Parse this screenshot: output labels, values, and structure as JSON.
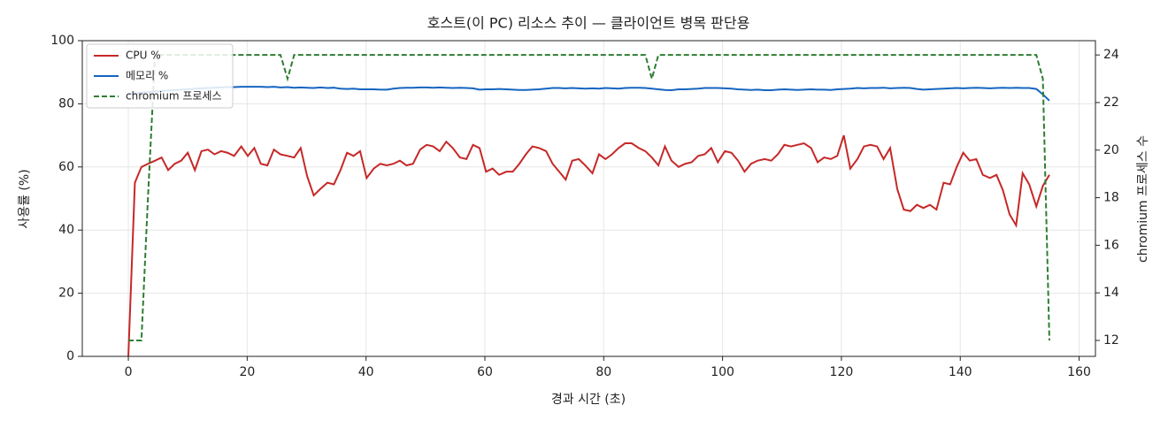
{
  "chart_data": {
    "type": "line",
    "title": "호스트(이 PC) 리소스 추이 — 클라이언트 병목 판단용",
    "xlabel": "경과 시간 (초)",
    "ylabel": "사용률 (%)",
    "y2label": "chromium 프로세스 수",
    "x": [
      0,
      1.1,
      2.2,
      3.3,
      4.5,
      5.6,
      6.7,
      7.8,
      8.9,
      10.0,
      11.2,
      12.3,
      13.4,
      14.5,
      15.6,
      16.7,
      17.8,
      19.0,
      20.1,
      21.2,
      22.3,
      23.4,
      24.5,
      25.6,
      26.8,
      27.9,
      29.0,
      30.1,
      31.2,
      32.3,
      33.5,
      34.6,
      35.7,
      36.8,
      37.9,
      39.0,
      40.1,
      41.3,
      42.4,
      43.5,
      44.6,
      45.7,
      46.8,
      47.9,
      49.1,
      50.2,
      51.3,
      52.4,
      53.5,
      54.6,
      55.8,
      56.9,
      58.0,
      59.1,
      60.2,
      61.3,
      62.4,
      63.6,
      64.7,
      65.8,
      66.9,
      68.0,
      69.1,
      70.3,
      71.4,
      72.5,
      73.6,
      74.7,
      75.8,
      76.9,
      78.1,
      79.2,
      80.3,
      81.4,
      82.5,
      83.6,
      84.7,
      85.9,
      87.0,
      88.1,
      89.2,
      90.3,
      91.4,
      92.6,
      93.7,
      94.8,
      95.9,
      97.0,
      98.1,
      99.2,
      100.4,
      101.5,
      102.6,
      103.7,
      104.8,
      105.9,
      107.1,
      108.2,
      109.3,
      110.4,
      111.5,
      112.6,
      113.7,
      114.9,
      116.0,
      117.1,
      118.2,
      119.3,
      120.4,
      121.5,
      122.7,
      123.8,
      124.9,
      126.0,
      127.1,
      128.2,
      129.4,
      130.5,
      131.6,
      132.7,
      133.8,
      134.9,
      136.0,
      137.2,
      138.3,
      139.4,
      140.5,
      141.6,
      142.7,
      143.8,
      145.0,
      146.1,
      147.2,
      148.3,
      149.4,
      150.5,
      151.6,
      152.8,
      153.9,
      155.0
    ],
    "series": [
      {
        "name": "CPU %",
        "color": "#c62828",
        "linestyle": "solid",
        "values": [
          0,
          55,
          60,
          61,
          62,
          63,
          59,
          61,
          62,
          64.5,
          59,
          65,
          65.5,
          64,
          65,
          64.5,
          63.5,
          66.5,
          63.5,
          66,
          61,
          60.5,
          65.5,
          64,
          63.5,
          63,
          66,
          57,
          51,
          53,
          55,
          54.5,
          59,
          64.5,
          63.5,
          65,
          56.5,
          59.5,
          61,
          60.5,
          61,
          62,
          60.5,
          61,
          65.5,
          67,
          66.5,
          65,
          68,
          66,
          63,
          62.5,
          67,
          66,
          58.5,
          59.5,
          57.5,
          58.5,
          58.5,
          61,
          64,
          66.5,
          66,
          65,
          61,
          58.5,
          56,
          62,
          62.5,
          60.5,
          58,
          64,
          62.5,
          64,
          66,
          67.5,
          67.5,
          66,
          65,
          63,
          60.5,
          66.5,
          62,
          60,
          61,
          61.5,
          63.5,
          64,
          66,
          61.5,
          65,
          64.5,
          62,
          58.5,
          61,
          62,
          62.5,
          62,
          64,
          67,
          66.5,
          67,
          67.5,
          66,
          61.5,
          63,
          62.5,
          63.5,
          70,
          59.5,
          62.5,
          66.5,
          67,
          66.5,
          62.5,
          66,
          53,
          46.5,
          46,
          48,
          47,
          48,
          46.5,
          55,
          54.5,
          60,
          64.5,
          62,
          62.5,
          57.5,
          56.5,
          57.5,
          52.5,
          45,
          41.5,
          58,
          54.5,
          47.5,
          54,
          57.5
        ]
      },
      {
        "name": "메모리 %",
        "color": "#1565c0",
        "linestyle": "solid",
        "values": [
          83,
          83.3,
          83.5,
          83.7,
          83.9,
          84,
          84.2,
          84.3,
          84.5,
          84.6,
          84.8,
          84.9,
          85,
          85.1,
          85.2,
          85.3,
          85.3,
          85.4,
          85.4,
          85.4,
          85.4,
          85.3,
          85.4,
          85.2,
          85.3,
          85.1,
          85.2,
          85.1,
          85.0,
          85.2,
          85.0,
          85.1,
          84.8,
          84.7,
          84.8,
          84.6,
          84.6,
          84.6,
          84.5,
          84.5,
          84.8,
          85.0,
          85.1,
          85.1,
          85.2,
          85.2,
          85.1,
          85.2,
          85.1,
          85.0,
          85.1,
          85.0,
          84.9,
          84.5,
          84.6,
          84.6,
          84.7,
          84.6,
          84.5,
          84.4,
          84.4,
          84.5,
          84.6,
          84.8,
          85.0,
          85.0,
          84.9,
          85.0,
          84.9,
          84.8,
          84.9,
          84.8,
          85.0,
          84.9,
          84.8,
          85.0,
          85.1,
          85.1,
          85.0,
          84.8,
          84.6,
          84.4,
          84.3,
          84.6,
          84.6,
          84.7,
          84.8,
          85.0,
          85.0,
          85.0,
          84.9,
          84.8,
          84.6,
          84.5,
          84.4,
          84.5,
          84.3,
          84.3,
          84.5,
          84.6,
          84.5,
          84.4,
          84.5,
          84.6,
          84.5,
          84.5,
          84.4,
          84.6,
          84.7,
          84.8,
          85.0,
          84.9,
          85.0,
          85.0,
          85.1,
          84.9,
          85.0,
          85.1,
          85.0,
          84.7,
          84.5,
          84.6,
          84.7,
          84.8,
          84.9,
          85.0,
          84.9,
          85.0,
          85.1,
          85.0,
          84.9,
          85.0,
          85.1,
          85.0,
          85.1,
          85.0,
          85.0,
          84.7,
          83.0,
          81.0
        ]
      },
      {
        "name": "chromium 프로세스",
        "color": "#2e7d32",
        "linestyle": "dashed",
        "axis": "y2",
        "values": [
          12,
          12,
          12,
          18,
          24,
          24,
          24,
          24,
          24,
          24,
          24,
          24,
          24,
          24,
          24,
          24,
          24,
          24,
          24,
          24,
          24,
          24,
          24,
          24,
          23,
          24,
          24,
          24,
          24,
          24,
          24,
          24,
          24,
          24,
          24,
          24,
          24,
          24,
          24,
          24,
          24,
          24,
          24,
          24,
          24,
          24,
          24,
          24,
          24,
          24,
          24,
          24,
          24,
          24,
          24,
          24,
          24,
          24,
          24,
          24,
          24,
          24,
          24,
          24,
          24,
          24,
          24,
          24,
          24,
          24,
          24,
          24,
          24,
          24,
          24,
          24,
          24,
          24,
          24,
          23,
          24,
          24,
          24,
          24,
          24,
          24,
          24,
          24,
          24,
          24,
          24,
          24,
          24,
          24,
          24,
          24,
          24,
          24,
          24,
          24,
          24,
          24,
          24,
          24,
          24,
          24,
          24,
          24,
          24,
          24,
          24,
          24,
          24,
          24,
          24,
          24,
          24,
          24,
          24,
          24,
          24,
          24,
          24,
          24,
          24,
          24,
          24,
          24,
          24,
          24,
          24,
          24,
          24,
          24,
          24,
          24,
          24,
          24,
          23,
          12
        ]
      }
    ],
    "xlim": [
      -7.75,
      162.75
    ],
    "xticks": [
      0,
      20,
      40,
      60,
      80,
      100,
      120,
      140,
      160
    ],
    "ylim": [
      0,
      100
    ],
    "yticks": [
      0,
      20,
      40,
      60,
      80,
      100
    ],
    "y2lim": [
      11.33,
      24.6
    ],
    "y2ticks": [
      12,
      14,
      16,
      18,
      20,
      22,
      24
    ],
    "grid": true,
    "legend": "upper-left"
  }
}
